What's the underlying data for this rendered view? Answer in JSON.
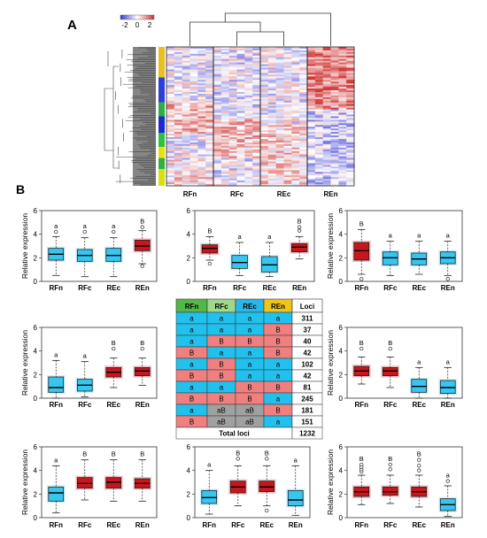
{
  "panel_a": {
    "label": "A",
    "legend_ticks": [
      "-2",
      "0",
      "2"
    ],
    "columns": [
      "RFn",
      "RFc",
      "REc",
      "REn"
    ],
    "sidebar_colors": [
      "#e8c020",
      "#2a3fd8",
      "#2ab040",
      "#1a2ad0",
      "#30c040",
      "#e8e010",
      "#30b040",
      "#d8e010"
    ]
  },
  "panel_b": {
    "label": "B",
    "table": {
      "headers": [
        "RFn",
        "RFc",
        "REc",
        "REn",
        "Loci"
      ],
      "header_colors": [
        "#52b848",
        "#9fd88a",
        "#2bb6e8",
        "#f0c419",
        "#ffffff"
      ],
      "rows": [
        {
          "cells": [
            "a",
            "a",
            "a",
            "a"
          ],
          "loci": "311"
        },
        {
          "cells": [
            "a",
            "a",
            "a",
            "B"
          ],
          "loci": "37"
        },
        {
          "cells": [
            "a",
            "B",
            "B",
            "B"
          ],
          "loci": "40"
        },
        {
          "cells": [
            "B",
            "a",
            "a",
            "B"
          ],
          "loci": "42"
        },
        {
          "cells": [
            "a",
            "B",
            "a",
            "a"
          ],
          "loci": "102"
        },
        {
          "cells": [
            "B",
            "B",
            "a",
            "a"
          ],
          "loci": "42"
        },
        {
          "cells": [
            "a",
            "a",
            "B",
            "B"
          ],
          "loci": "81"
        },
        {
          "cells": [
            "B",
            "B",
            "B",
            "a"
          ],
          "loci": "245"
        },
        {
          "cells": [
            "a",
            "aB",
            "aB",
            "B"
          ],
          "loci": "181"
        },
        {
          "cells": [
            "B",
            "aB",
            "aB",
            "a"
          ],
          "loci": "151"
        }
      ],
      "total_label": "Total loci",
      "total": "1232"
    }
  },
  "chart_data": [
    {
      "type": "box",
      "panel": "B",
      "ylabel": "Relative expression",
      "ylim": [
        0,
        6
      ],
      "yticks": [
        0,
        2,
        4,
        6
      ],
      "categories": [
        "RFn",
        "RFc",
        "REc",
        "REn"
      ],
      "letters": [
        "a",
        "a",
        "a",
        "B"
      ],
      "boxes": [
        {
          "whislo": 0.5,
          "q1": 1.8,
          "med": 2.3,
          "q3": 2.8,
          "whishi": 3.8,
          "fliers": [
            4.2
          ]
        },
        {
          "whislo": 0.4,
          "q1": 1.7,
          "med": 2.2,
          "q3": 2.7,
          "whishi": 3.7,
          "fliers": [
            4.2
          ]
        },
        {
          "whislo": 0.4,
          "q1": 1.7,
          "med": 2.2,
          "q3": 2.8,
          "whishi": 3.7,
          "fliers": [
            4.2
          ]
        },
        {
          "whislo": 1.5,
          "q1": 2.6,
          "med": 3.0,
          "q3": 3.5,
          "whishi": 4.3,
          "fliers": [
            4.6,
            1.3
          ]
        }
      ]
    },
    {
      "type": "box",
      "panel": "B",
      "ylabel": "",
      "ylim": [
        0,
        6
      ],
      "yticks": [
        0,
        2,
        4,
        6
      ],
      "categories": [
        "RFn",
        "RFc",
        "REc",
        "REn"
      ],
      "letters": [
        "B",
        "a",
        "a",
        "B"
      ],
      "boxes": [
        {
          "whislo": 1.8,
          "q1": 2.4,
          "med": 2.8,
          "q3": 3.1,
          "whishi": 3.8,
          "fliers": [
            1.5
          ]
        },
        {
          "whislo": 0.5,
          "q1": 1.1,
          "med": 1.6,
          "q3": 2.2,
          "whishi": 3.3,
          "fliers": []
        },
        {
          "whislo": 0.4,
          "q1": 0.8,
          "med": 1.4,
          "q3": 2.1,
          "whishi": 3.3,
          "fliers": []
        },
        {
          "whislo": 1.9,
          "q1": 2.5,
          "med": 2.9,
          "q3": 3.2,
          "whishi": 3.8,
          "fliers": [
            4.3,
            4.6
          ]
        }
      ]
    },
    {
      "type": "box",
      "panel": "B",
      "ylabel": "Relative expression",
      "ylim": [
        0,
        6
      ],
      "yticks": [
        0,
        2,
        4,
        6
      ],
      "categories": [
        "RFn",
        "RFc",
        "REc",
        "REn"
      ],
      "letters": [
        "B",
        "a",
        "a",
        "a"
      ],
      "boxes": [
        {
          "whislo": 0.6,
          "q1": 1.8,
          "med": 2.6,
          "q3": 3.3,
          "whishi": 4.4,
          "fliers": [
            0.2
          ]
        },
        {
          "whislo": 0.5,
          "q1": 1.4,
          "med": 2.0,
          "q3": 2.5,
          "whishi": 3.4,
          "fliers": []
        },
        {
          "whislo": 0.6,
          "q1": 1.4,
          "med": 1.9,
          "q3": 2.4,
          "whishi": 3.4,
          "fliers": []
        },
        {
          "whislo": 0.5,
          "q1": 1.5,
          "med": 2.0,
          "q3": 2.5,
          "whishi": 3.4,
          "fliers": [
            0.2
          ]
        }
      ]
    },
    {
      "type": "box",
      "panel": "B",
      "ylabel": "Relative expression",
      "ylim": [
        0,
        6
      ],
      "yticks": [
        0,
        2,
        4,
        6
      ],
      "categories": [
        "RFn",
        "RFc",
        "REc",
        "REn"
      ],
      "letters": [
        "a",
        "a",
        "B",
        "B"
      ],
      "boxes": [
        {
          "whislo": 0.0,
          "q1": 0.5,
          "med": 0.9,
          "q3": 1.8,
          "whishi": 3.2,
          "fliers": []
        },
        {
          "whislo": 0.1,
          "q1": 0.6,
          "med": 1.1,
          "q3": 1.6,
          "whishi": 3.1,
          "fliers": []
        },
        {
          "whislo": 0.9,
          "q1": 1.8,
          "med": 2.2,
          "q3": 2.6,
          "whishi": 3.4,
          "fliers": [
            4.2
          ]
        },
        {
          "whislo": 1.1,
          "q1": 1.9,
          "med": 2.3,
          "q3": 2.6,
          "whishi": 3.4,
          "fliers": [
            4.2
          ]
        }
      ]
    },
    {
      "type": "box",
      "panel": "B",
      "ylabel": "Relative expression",
      "ylim": [
        0,
        6
      ],
      "yticks": [
        0,
        2,
        4,
        6
      ],
      "categories": [
        "RFn",
        "RFc",
        "REc",
        "REn"
      ],
      "letters": [
        "B",
        "B",
        "a",
        "a"
      ],
      "boxes": [
        {
          "whislo": 1.2,
          "q1": 1.9,
          "med": 2.3,
          "q3": 2.7,
          "whishi": 3.5,
          "fliers": [
            4.2
          ]
        },
        {
          "whislo": 0.9,
          "q1": 1.9,
          "med": 2.3,
          "q3": 2.6,
          "whishi": 3.5,
          "fliers": [
            4.2
          ]
        },
        {
          "whislo": 0.0,
          "q1": 0.5,
          "med": 1.0,
          "q3": 1.6,
          "whishi": 2.6,
          "fliers": []
        },
        {
          "whislo": 0.0,
          "q1": 0.4,
          "med": 0.9,
          "q3": 1.5,
          "whishi": 2.6,
          "fliers": []
        }
      ]
    },
    {
      "type": "box",
      "panel": "B",
      "ylabel": "Relative expression",
      "ylim": [
        0,
        6
      ],
      "yticks": [
        0,
        2,
        4,
        6
      ],
      "categories": [
        "RFn",
        "RFc",
        "REc",
        "REn"
      ],
      "letters": [
        "a",
        "B",
        "B",
        "B"
      ],
      "boxes": [
        {
          "whislo": 0.4,
          "q1": 1.4,
          "med": 2.1,
          "q3": 2.6,
          "whishi": 4.4,
          "fliers": []
        },
        {
          "whislo": 1.5,
          "q1": 2.5,
          "med": 2.9,
          "q3": 3.4,
          "whishi": 4.9,
          "fliers": []
        },
        {
          "whislo": 1.4,
          "q1": 2.5,
          "med": 3.0,
          "q3": 3.4,
          "whishi": 4.9,
          "fliers": []
        },
        {
          "whislo": 1.4,
          "q1": 2.5,
          "med": 2.9,
          "q3": 3.3,
          "whishi": 4.9,
          "fliers": []
        }
      ]
    },
    {
      "type": "box",
      "panel": "B",
      "ylabel": "",
      "ylim": [
        0,
        6
      ],
      "yticks": [
        0,
        2,
        4,
        6
      ],
      "categories": [
        "RFn",
        "RFc",
        "REc",
        "REn"
      ],
      "letters": [
        "a",
        "B",
        "B",
        "a"
      ],
      "boxes": [
        {
          "whislo": 0.3,
          "q1": 1.2,
          "med": 1.7,
          "q3": 2.3,
          "whishi": 4.0,
          "fliers": []
        },
        {
          "whislo": 1.0,
          "q1": 2.1,
          "med": 2.6,
          "q3": 3.1,
          "whishi": 4.4,
          "fliers": [
            5.0
          ]
        },
        {
          "whislo": 1.0,
          "q1": 2.2,
          "med": 2.6,
          "q3": 3.1,
          "whishi": 4.4,
          "fliers": [
            5.0,
            0.6
          ]
        },
        {
          "whislo": 0.2,
          "q1": 1.0,
          "med": 1.5,
          "q3": 2.3,
          "whishi": 4.4,
          "fliers": []
        }
      ]
    },
    {
      "type": "box",
      "panel": "B",
      "ylabel": "Relative expression",
      "ylim": [
        0,
        6
      ],
      "yticks": [
        0,
        2,
        4,
        6
      ],
      "categories": [
        "RFn",
        "RFc",
        "REc",
        "REn"
      ],
      "letters": [
        "B",
        "B",
        "B",
        "a"
      ],
      "boxes": [
        {
          "whislo": 1.1,
          "q1": 1.8,
          "med": 2.2,
          "q3": 2.6,
          "whishi": 3.6,
          "fliers": [
            3.9,
            4.1,
            4.3,
            4.5
          ]
        },
        {
          "whislo": 1.2,
          "q1": 1.9,
          "med": 2.2,
          "q3": 2.6,
          "whishi": 3.6,
          "fliers": [
            4.1,
            4.5
          ]
        },
        {
          "whislo": 0.9,
          "q1": 1.8,
          "med": 2.2,
          "q3": 2.6,
          "whishi": 3.6,
          "fliers": [
            4.0,
            4.4,
            4.9
          ]
        },
        {
          "whislo": 0.1,
          "q1": 0.6,
          "med": 1.1,
          "q3": 1.6,
          "whishi": 2.7,
          "fliers": [
            3.1
          ]
        }
      ]
    }
  ]
}
